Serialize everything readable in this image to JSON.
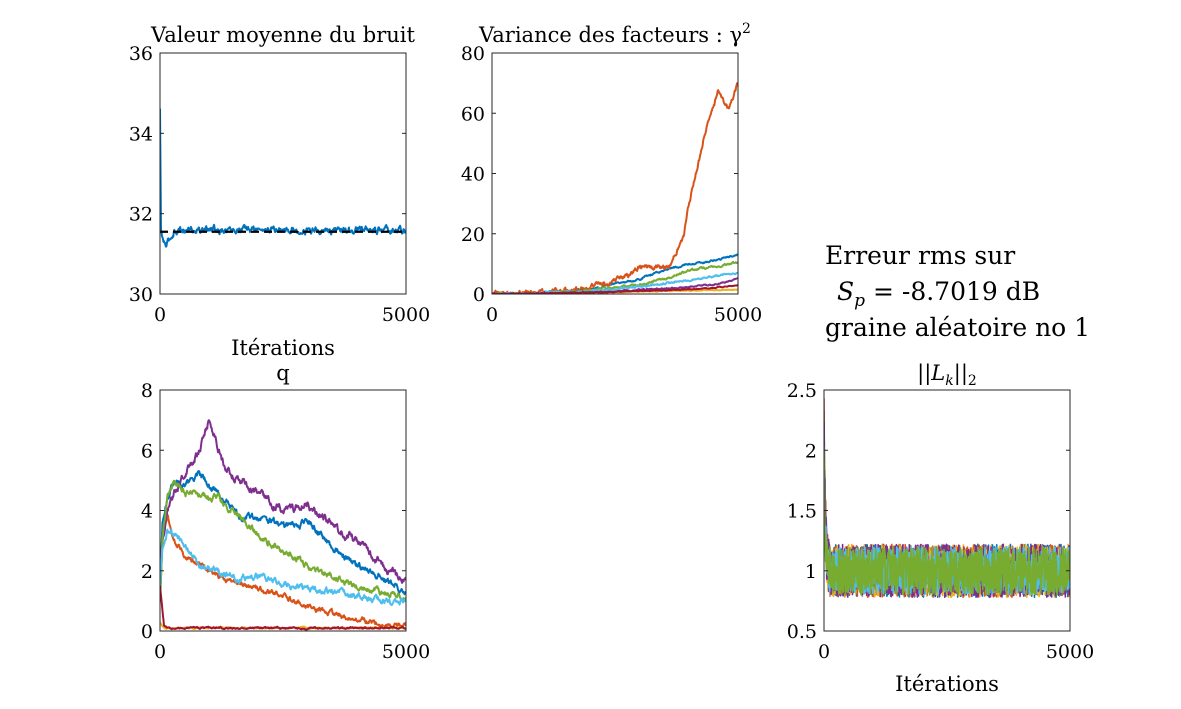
{
  "annotation": {
    "line1": "Erreur rms sur",
    "line2": "S",
    "line2_sub": "p",
    "line2_rest": " = -8.7019 dB",
    "line3": "graine aléatoire no 1"
  },
  "colors": [
    "#0072BD",
    "#D95319",
    "#EDB120",
    "#7E2F8E",
    "#77AC30",
    "#4DBEEE",
    "#A2142F"
  ],
  "chart_data": [
    {
      "id": "bruit",
      "type": "line",
      "title": "Valeur moyenne du bruit",
      "xlabel": "Itérations",
      "ylabel": "",
      "xlim": [
        0,
        5000
      ],
      "ylim": [
        30,
        36
      ],
      "xticks": [
        0,
        5000
      ],
      "yticks": [
        30,
        32,
        34,
        36
      ],
      "reference_line": {
        "y": 31.55,
        "style": "dashed",
        "color": "#000000"
      },
      "series": [
        {
          "color": "#0072BD",
          "noise": 0.12,
          "x": [
            0,
            20,
            40,
            80,
            120,
            200,
            300,
            600,
            1000,
            2000,
            3000,
            4000,
            5000
          ],
          "y": [
            34.6,
            31.6,
            31.4,
            31.3,
            31.2,
            31.35,
            31.6,
            31.6,
            31.6,
            31.6,
            31.6,
            31.6,
            31.6
          ]
        }
      ]
    },
    {
      "id": "variance",
      "type": "line",
      "title": "Variance des facteurs : γ",
      "title_sup": "2",
      "xlabel": "",
      "ylabel": "",
      "xlim": [
        0,
        5000
      ],
      "ylim": [
        0,
        80
      ],
      "xticks": [
        0,
        5000
      ],
      "yticks": [
        0,
        20,
        40,
        60,
        80
      ],
      "series": [
        {
          "color": "#0072BD",
          "noise": 0.4,
          "x": [
            0,
            1000,
            2000,
            3000,
            3500,
            4000,
            4500,
            5000
          ],
          "y": [
            0,
            0.4,
            1.5,
            5,
            8,
            10,
            11,
            13
          ]
        },
        {
          "color": "#D95319",
          "noise": 1.2,
          "x": [
            0,
            1000,
            2000,
            2800,
            3000,
            3300,
            3600,
            3900,
            4000,
            4200,
            4400,
            4600,
            4800,
            5000
          ],
          "y": [
            0,
            0.5,
            2,
            6,
            9,
            9,
            9,
            20,
            30,
            44,
            58,
            67,
            61,
            70
          ]
        },
        {
          "color": "#EDB120",
          "noise": 0.2,
          "x": [
            0,
            2000,
            3500,
            5000
          ],
          "y": [
            0,
            0.4,
            1,
            1.5
          ]
        },
        {
          "color": "#7E2F8E",
          "noise": 0.3,
          "x": [
            0,
            2000,
            3500,
            4500,
            5000
          ],
          "y": [
            0,
            0.6,
            1.8,
            3,
            5
          ]
        },
        {
          "color": "#77AC30",
          "noise": 0.5,
          "x": [
            0,
            1000,
            2000,
            3000,
            3500,
            4000,
            4500,
            5000
          ],
          "y": [
            0,
            0.3,
            1.2,
            3,
            5,
            8,
            9,
            10.5
          ]
        },
        {
          "color": "#4DBEEE",
          "noise": 0.4,
          "x": [
            0,
            2000,
            3000,
            3500,
            4000,
            4500,
            5000
          ],
          "y": [
            0,
            0.8,
            2.5,
            3.5,
            4.5,
            6,
            7
          ]
        },
        {
          "color": "#A2142F",
          "noise": 0.2,
          "x": [
            0,
            2000,
            3500,
            4500,
            5000
          ],
          "y": [
            0,
            0.5,
            1.2,
            2,
            3
          ]
        }
      ]
    },
    {
      "id": "q",
      "type": "line",
      "title": "q",
      "xlabel": "",
      "ylabel": "",
      "xlim": [
        0,
        5000
      ],
      "ylim": [
        0,
        8
      ],
      "xticks": [
        0,
        5000
      ],
      "yticks": [
        0,
        2,
        4,
        6,
        8
      ],
      "series": [
        {
          "color": "#0072BD",
          "noise": 0.15,
          "x": [
            0,
            50,
            150,
            300,
            500,
            800,
            1200,
            1600,
            2000,
            2500,
            3000,
            3500,
            4000,
            4500,
            5000
          ],
          "y": [
            1.5,
            3.5,
            4.5,
            5,
            4.8,
            5.2,
            4.5,
            3.8,
            3.8,
            3.5,
            3.6,
            2.8,
            2.2,
            1.8,
            1.2
          ]
        },
        {
          "color": "#D95319",
          "noise": 0.12,
          "x": [
            0,
            50,
            150,
            300,
            500,
            800,
            1200,
            1600,
            2000,
            2500,
            3000,
            3500,
            4000,
            4500,
            5000
          ],
          "y": [
            1,
            3,
            3.8,
            3,
            2.5,
            2.2,
            1.8,
            1.6,
            1.4,
            1.2,
            0.8,
            0.6,
            0.4,
            0.2,
            0.15
          ]
        },
        {
          "color": "#EDB120",
          "noise": 0.04,
          "x": [
            0,
            100,
            5000
          ],
          "y": [
            0.3,
            0.1,
            0.1
          ]
        },
        {
          "color": "#7E2F8E",
          "noise": 0.18,
          "x": [
            0,
            50,
            150,
            300,
            500,
            800,
            1000,
            1300,
            1600,
            2000,
            2500,
            3000,
            3500,
            4000,
            4500,
            5000
          ],
          "y": [
            2,
            3,
            4,
            4.6,
            5.2,
            6,
            7,
            5.5,
            5,
            4.6,
            4,
            4.2,
            3.5,
            3,
            2.2,
            1.6
          ]
        },
        {
          "color": "#77AC30",
          "noise": 0.15,
          "x": [
            0,
            50,
            150,
            300,
            500,
            800,
            1200,
            1600,
            2000,
            2500,
            3000,
            3500,
            4000,
            4500,
            5000
          ],
          "y": [
            1,
            3,
            4.5,
            5,
            4.6,
            4.5,
            4.4,
            3.8,
            3.2,
            2.6,
            2.2,
            1.8,
            1.5,
            1.3,
            1.1
          ]
        },
        {
          "color": "#4DBEEE",
          "noise": 0.15,
          "x": [
            0,
            50,
            150,
            300,
            500,
            800,
            1200,
            1600,
            2000,
            2500,
            3000,
            3500,
            4000,
            4500,
            5000
          ],
          "y": [
            1.5,
            2.8,
            3.3,
            3.2,
            2.8,
            2.2,
            2,
            1.8,
            1.8,
            1.6,
            1.4,
            1.3,
            1.2,
            1,
            0.9
          ]
        },
        {
          "color": "#A2142F",
          "noise": 0.04,
          "x": [
            0,
            80,
            150,
            300,
            5000
          ],
          "y": [
            1.5,
            0.2,
            0.1,
            0.1,
            0.1
          ]
        }
      ]
    },
    {
      "id": "lk",
      "type": "line",
      "title": "||L",
      "title_sub": "k",
      "title_rest": "||",
      "title_sub2": "2",
      "xlabel": "Itérations",
      "ylabel": "",
      "xlim": [
        0,
        5000
      ],
      "ylim": [
        0.5,
        2.5
      ],
      "xticks": [
        0,
        5000
      ],
      "yticks": [
        0.5,
        1,
        1.5,
        2,
        2.5
      ],
      "series": [
        {
          "color": "#0072BD",
          "noise": 0.22,
          "x": [
            0,
            20,
            60,
            120,
            5000
          ],
          "y": [
            2.2,
            1.5,
            1.1,
            1.0,
            1.0
          ]
        },
        {
          "color": "#D95319",
          "noise": 0.22,
          "x": [
            0,
            20,
            60,
            120,
            5000
          ],
          "y": [
            2.3,
            1.6,
            1.1,
            1.0,
            1.0
          ]
        },
        {
          "color": "#EDB120",
          "noise": 0.22,
          "x": [
            0,
            20,
            60,
            120,
            5000
          ],
          "y": [
            2.0,
            1.4,
            1.1,
            1.0,
            1.0
          ]
        },
        {
          "color": "#7E2F8E",
          "noise": 0.22,
          "x": [
            0,
            20,
            60,
            120,
            5000
          ],
          "y": [
            2.1,
            1.5,
            1.1,
            1.0,
            1.0
          ]
        },
        {
          "color": "#4DBEEE",
          "noise": 0.2,
          "x": [
            0,
            20,
            60,
            120,
            5000
          ],
          "y": [
            1.8,
            1.3,
            1.05,
            1.0,
            1.0
          ]
        },
        {
          "color": "#77AC30",
          "noise": 0.2,
          "x": [
            0,
            20,
            60,
            120,
            5000
          ],
          "y": [
            1.9,
            1.3,
            1.05,
            1.0,
            1.0
          ]
        }
      ]
    }
  ]
}
